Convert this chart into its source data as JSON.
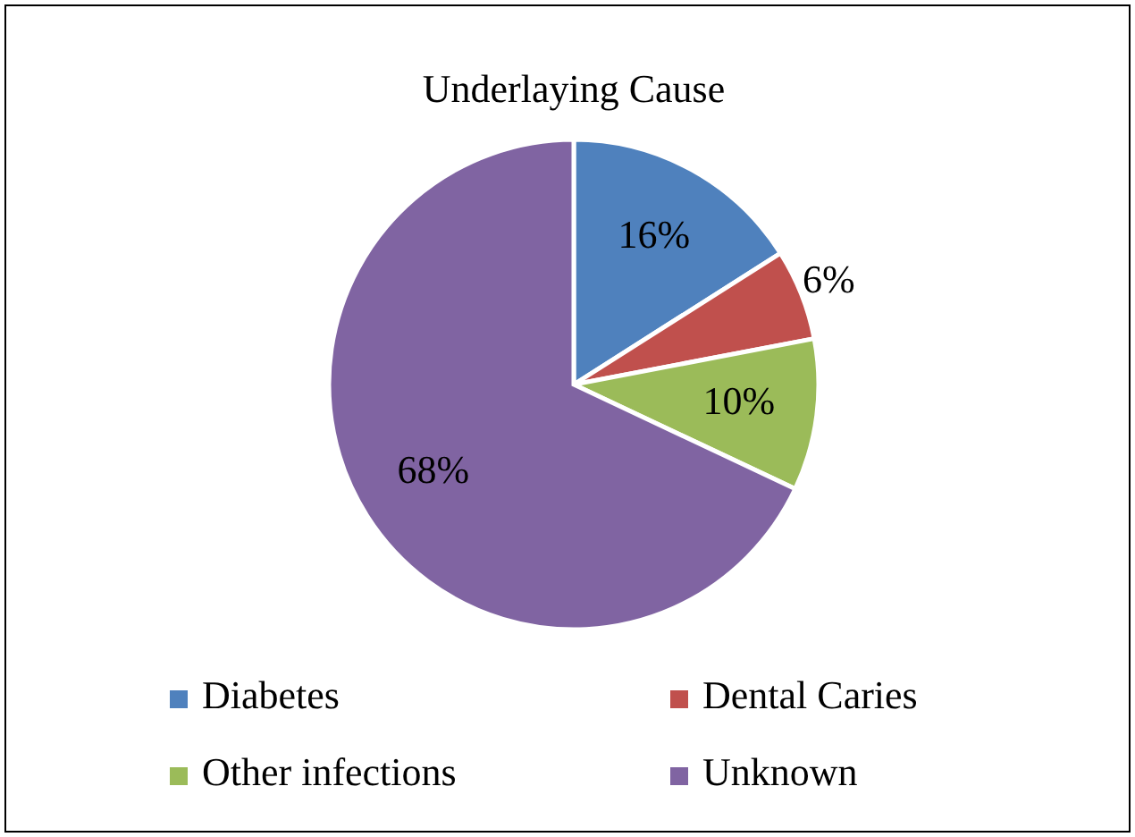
{
  "chart_data": {
    "type": "pie",
    "title": "Underlaying Cause",
    "categories": [
      "Diabetes",
      "Dental Caries",
      "Other infections",
      "Unknown"
    ],
    "values": [
      16,
      6,
      10,
      68
    ],
    "colors": [
      "#4f81bd",
      "#c0504d",
      "#9bbb59",
      "#8064a2"
    ],
    "value_labels": [
      "16%",
      "6%",
      "10%",
      "68%"
    ],
    "legend": "bottom"
  }
}
